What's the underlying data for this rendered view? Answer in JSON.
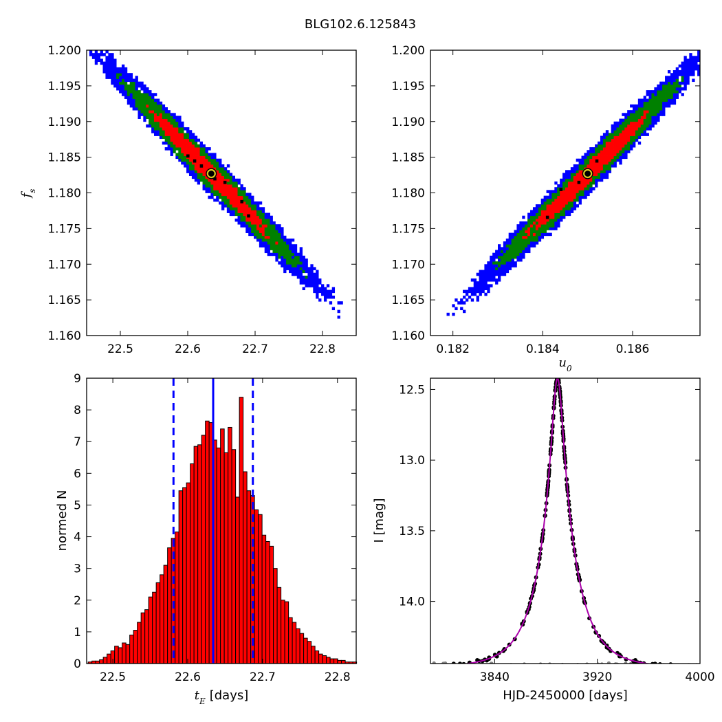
{
  "title": "BLG102.6.125843",
  "chart_data": [
    {
      "type": "heatmap",
      "panel": "top-left",
      "xlabel": "",
      "ylabel_symbol": "f",
      "ylabel_subscript": "s",
      "xlim": [
        22.45,
        22.85
      ],
      "ylim": [
        1.16,
        1.2
      ],
      "xticks": [
        "22.5",
        "22.6",
        "22.7",
        "22.8"
      ],
      "yticks": [
        "1.160",
        "1.165",
        "1.170",
        "1.175",
        "1.180",
        "1.185",
        "1.190",
        "1.195",
        "1.200"
      ],
      "correlation": "negative",
      "center": {
        "x": 22.635,
        "y": 1.1827
      },
      "sigma_x": 0.055,
      "sigma_y": 0.0055,
      "rho": -0.985,
      "levels": [
        {
          "name": "1-sigma",
          "color": "#ff0000"
        },
        {
          "name": "2-sigma",
          "color": "#008000"
        },
        {
          "name": "3-sigma",
          "color": "#0000ff"
        }
      ],
      "black_cells": [
        [
          22.61,
          1.1845
        ],
        [
          22.62,
          1.1838
        ],
        [
          22.6,
          1.1852
        ],
        [
          22.64,
          1.182
        ],
        [
          22.655,
          1.1815
        ],
        [
          22.68,
          1.1788
        ],
        [
          22.69,
          1.1768
        ]
      ],
      "best_fit_marker": {
        "x": 22.635,
        "y": 1.1827
      }
    },
    {
      "type": "heatmap",
      "panel": "top-right",
      "xlabel_symbol": "u",
      "xlabel_subscript": "0",
      "ylabel": "",
      "xlim": [
        0.1815,
        0.1875
      ],
      "ylim": [
        1.16,
        1.2
      ],
      "xticks": [
        "0.182",
        "0.184",
        "0.186"
      ],
      "yticks": [
        "1.160",
        "1.165",
        "1.170",
        "1.175",
        "1.180",
        "1.185",
        "1.190",
        "1.195",
        "1.200"
      ],
      "correlation": "positive",
      "center": {
        "x": 0.185,
        "y": 1.1827
      },
      "sigma_x": 0.00085,
      "sigma_y": 0.0055,
      "rho": 0.985,
      "levels": [
        {
          "name": "1-sigma",
          "color": "#ff0000"
        },
        {
          "name": "2-sigma",
          "color": "#008000"
        },
        {
          "name": "3-sigma",
          "color": "#0000ff"
        }
      ],
      "black_cells": [
        [
          0.1852,
          1.1845
        ],
        [
          0.1848,
          1.1815
        ],
        [
          0.1844,
          1.1805
        ],
        [
          0.1841,
          1.1766
        ]
      ],
      "best_fit_marker": {
        "x": 0.185,
        "y": 1.1827
      }
    },
    {
      "type": "bar",
      "panel": "bottom-left",
      "xlabel_symbol": "t",
      "xlabel_subscript": "E",
      "xlabel_unit": "[days]",
      "ylabel": "normed N",
      "xlim": [
        22.465,
        22.825
      ],
      "ylim": [
        0,
        9
      ],
      "xticks": [
        "22.5",
        "22.6",
        "22.7",
        "22.8"
      ],
      "yticks": [
        "0",
        "1",
        "2",
        "3",
        "4",
        "5",
        "6",
        "7",
        "8",
        "9"
      ],
      "bin_start": 22.467,
      "bin_width": 0.00505,
      "values": [
        0.05,
        0.08,
        0.08,
        0.12,
        0.2,
        0.3,
        0.4,
        0.55,
        0.5,
        0.65,
        0.6,
        0.9,
        1.05,
        1.3,
        1.6,
        1.7,
        2.1,
        2.25,
        2.55,
        2.8,
        3.1,
        3.65,
        3.95,
        4.15,
        5.45,
        5.55,
        5.7,
        6.3,
        6.85,
        6.9,
        7.2,
        7.65,
        7.6,
        7.05,
        6.8,
        7.4,
        6.65,
        7.45,
        6.75,
        5.25,
        8.4,
        6.05,
        5.45,
        5.3,
        4.85,
        4.7,
        4.05,
        3.85,
        3.7,
        3.0,
        2.4,
        2.0,
        1.95,
        1.45,
        1.3,
        1.1,
        0.95,
        0.8,
        0.7,
        0.55,
        0.4,
        0.3,
        0.25,
        0.2,
        0.15,
        0.15,
        0.1,
        0.1,
        0.05,
        0.05,
        0.05
      ],
      "median": 22.634,
      "lower_bound": 22.581,
      "upper_bound": 22.687,
      "bar_color": "#ff0000",
      "line_color": "#0000ff"
    },
    {
      "type": "line",
      "panel": "bottom-right",
      "xlabel": "HJD-2450000 [days]",
      "ylabel": "I [mag]",
      "xlim": [
        3790,
        4000
      ],
      "ylim": [
        14.44,
        12.42
      ],
      "xticks": [
        "3840",
        "3920",
        "4000"
      ],
      "xtick_values": [
        3840,
        3920,
        4000
      ],
      "yticks": [
        "12.5",
        "13.0",
        "13.5",
        "14.0"
      ],
      "ytick_values": [
        12.5,
        13.0,
        13.5,
        14.0
      ],
      "model": {
        "t0": 3889,
        "baseline_mag": 14.47,
        "peak_mag": 12.42,
        "width_days": 5.0,
        "color": "#aa00aa"
      },
      "observed_color": "#000000",
      "residual_color": "#808080"
    }
  ]
}
